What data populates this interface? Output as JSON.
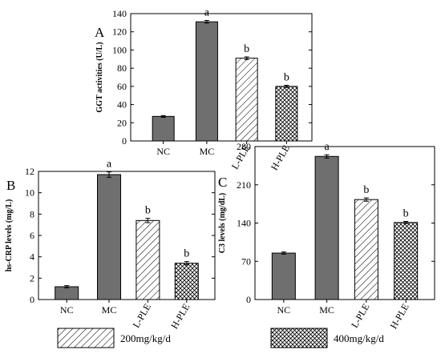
{
  "chart_data": [
    {
      "type": "bar",
      "panel_label": "A",
      "ylabel": "GGT activities  (U/L)",
      "categories": [
        "NC",
        "MC",
        "L-PLE",
        "H-PLE"
      ],
      "values": [
        27,
        131,
        91,
        60
      ],
      "errors": [
        1,
        1.5,
        1.5,
        1.2
      ],
      "significance": [
        "",
        "a",
        "b",
        "b"
      ],
      "fills": [
        "solid",
        "solid",
        "hatch",
        "crosshatch"
      ],
      "ylim": [
        0,
        140
      ],
      "yticks": [
        "0",
        "20",
        "40",
        "60",
        "80",
        "100",
        "120",
        "140"
      ]
    },
    {
      "type": "bar",
      "panel_label": "B",
      "ylabel": "hs-CRP levels (mg/L)",
      "categories": [
        "NC",
        "MC",
        "L-PLE",
        "H-PLE"
      ],
      "values": [
        1.2,
        11.7,
        7.4,
        3.4
      ],
      "errors": [
        0.1,
        0.25,
        0.2,
        0.15
      ],
      "significance": [
        "",
        "a",
        "b",
        "b"
      ],
      "fills": [
        "solid",
        "solid",
        "hatch",
        "crosshatch"
      ],
      "ylim": [
        0,
        12
      ],
      "yticks": [
        "0",
        "2",
        "4",
        "6",
        "8",
        "10",
        "12"
      ]
    },
    {
      "type": "bar",
      "panel_label": "C",
      "ylabel": "C3 levels (mg/dL)",
      "categories": [
        "NC",
        "MC",
        "L-PLE",
        "H-PLE"
      ],
      "values": [
        85,
        262,
        183,
        141
      ],
      "errors": [
        2,
        3,
        3,
        2
      ],
      "significance": [
        "",
        "a",
        "b",
        "b"
      ],
      "fills": [
        "solid",
        "solid",
        "hatch",
        "crosshatch"
      ],
      "ylim": [
        0,
        280
      ],
      "yticks": [
        "0",
        "70",
        "140",
        "210",
        "280"
      ]
    }
  ],
  "legend": [
    {
      "label": "200mg/kg/d",
      "fill": "hatch"
    },
    {
      "label": "400mg/kg/d",
      "fill": "crosshatch"
    }
  ],
  "colors": {
    "solid_bar": "#6f6f6f",
    "axis": "#000000"
  }
}
